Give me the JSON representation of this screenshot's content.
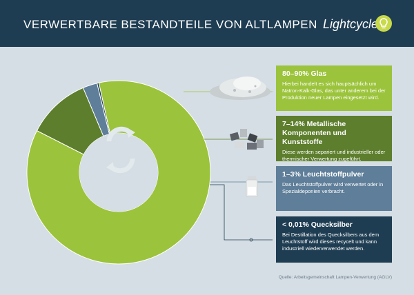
{
  "header": {
    "title": "VERWERTBARE BESTANDTEILE VON ALTLAMPEN",
    "brand": "Lightcycle"
  },
  "colors": {
    "header_bg": "#1f3d52",
    "glass": "#9bc33b",
    "metal": "#5d7e2d",
    "powder": "#5e7e99",
    "mercury": "#1f3d52",
    "background": "#d5dee4"
  },
  "chart_data": {
    "type": "pie",
    "title": "Verwertbare Bestandteile von Altlampen",
    "unit": "%",
    "categories": [
      "Glas",
      "Metallische Komponenten und Kunststoffe",
      "Leuchtstoffpulver",
      "Quecksilber"
    ],
    "values": [
      85,
      11,
      2.5,
      0.01
    ],
    "colors": [
      "#9bc33b",
      "#5d7e2d",
      "#5e7e99",
      "#1f3d52"
    ],
    "donut": true
  },
  "boxes": [
    {
      "heading": "80–90% Glas",
      "text": "Hierbei handelt es sich hauptsächlich um Natron-Kalk-Glas, das unter anderem bei der Produktion neuer Lampen eingesetzt wird."
    },
    {
      "heading": "7–14% Metallische Komponenten und Kunststoffe",
      "text": "Diese werden separiert und industrieller oder thermischer Verwertung zugeführt."
    },
    {
      "heading": "1–3% Leuchtstoffpulver",
      "text": "Das Leuchtstoffpulver wird verwertet oder in Spezialdeponien verbracht."
    },
    {
      "heading": "< 0,01% Quecksilber",
      "text": "Bei Destillation des Quecksilbers aus dem Leuchtstoff wird dieses recycelt und kann industriell wiederverwendet werden."
    }
  ],
  "source": "Quelle: Arbeitsgemeinschaft Lampen-Verwertung (AGLV)"
}
